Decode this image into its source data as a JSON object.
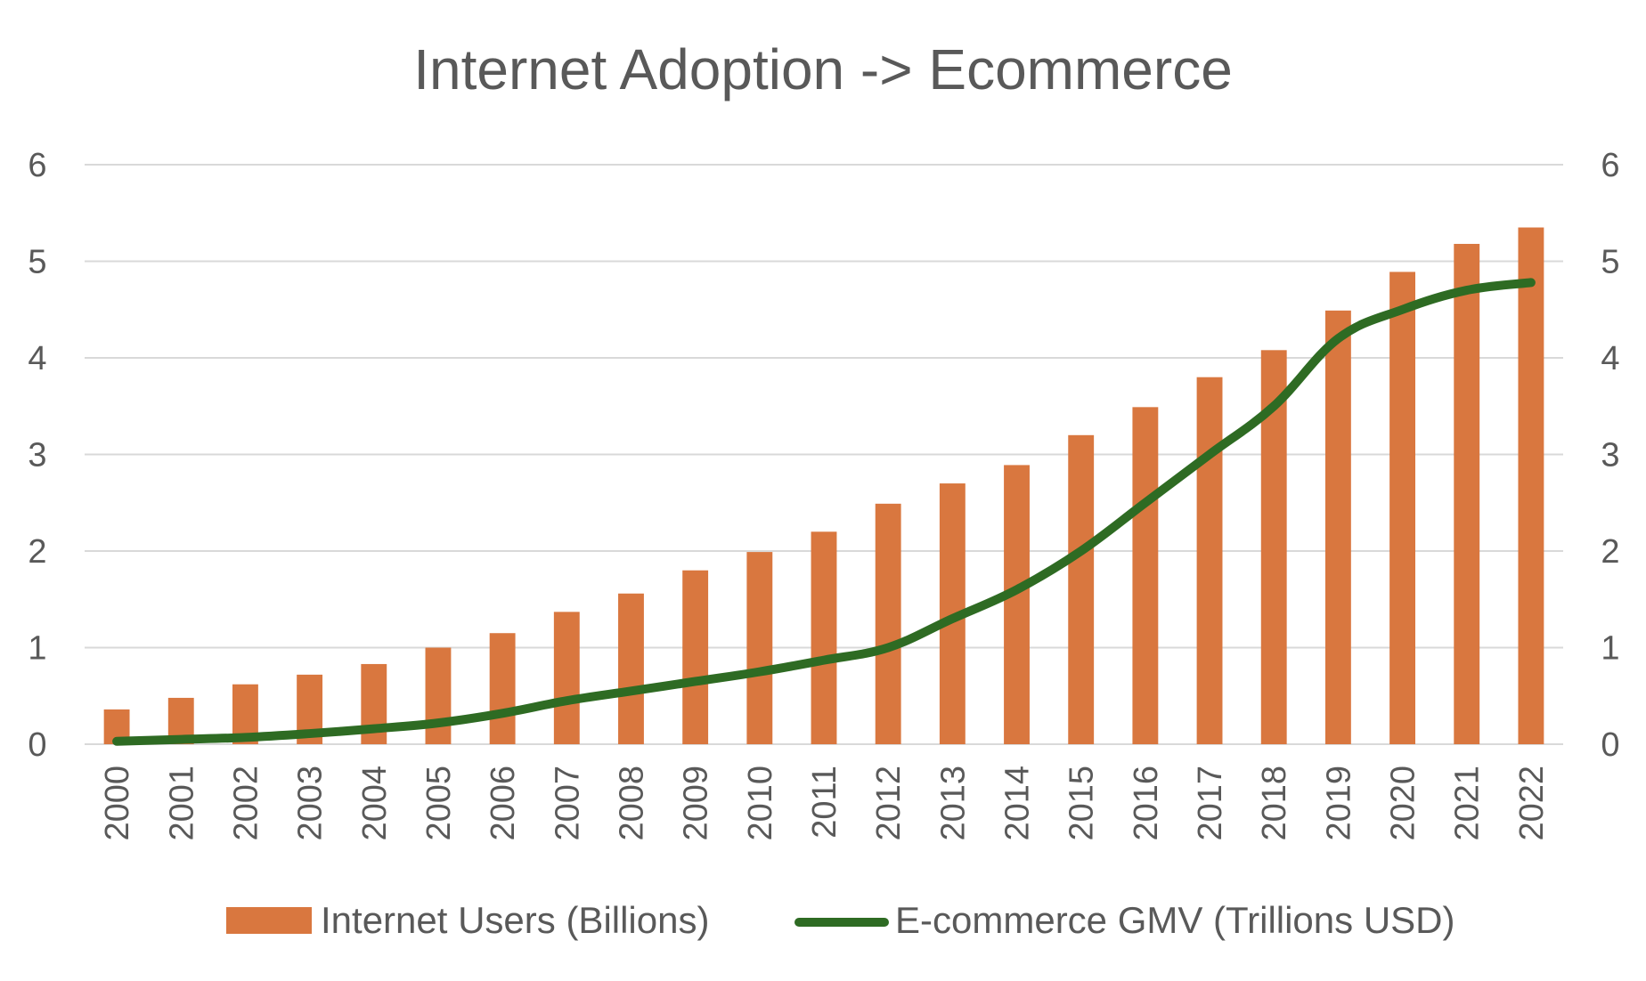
{
  "chart_data": {
    "type": "bar",
    "title": "Internet Adoption -> Ecommerce",
    "categories": [
      "2000",
      "2001",
      "2002",
      "2003",
      "2004",
      "2005",
      "2006",
      "2007",
      "2008",
      "2009",
      "2010",
      "2011",
      "2012",
      "2013",
      "2014",
      "2015",
      "2016",
      "2017",
      "2018",
      "2019",
      "2020",
      "2021",
      "2022"
    ],
    "series": [
      {
        "name": "Internet Users (Billions)",
        "type": "bar",
        "axis": "left",
        "color": "#D9773F",
        "values": [
          0.36,
          0.48,
          0.62,
          0.72,
          0.83,
          1.0,
          1.15,
          1.37,
          1.56,
          1.8,
          1.99,
          2.2,
          2.49,
          2.7,
          2.89,
          3.2,
          3.49,
          3.8,
          4.08,
          4.49,
          4.89,
          5.18,
          5.35
        ]
      },
      {
        "name": "E-commerce GMV (Trillions USD)",
        "type": "line",
        "axis": "right",
        "color": "#2E6B23",
        "values": [
          0.03,
          0.05,
          0.07,
          0.11,
          0.16,
          0.22,
          0.32,
          0.45,
          0.55,
          0.65,
          0.75,
          0.87,
          1.0,
          1.3,
          1.6,
          2.0,
          2.5,
          3.0,
          3.5,
          4.2,
          4.5,
          4.7,
          4.78
        ]
      }
    ],
    "ylim_left": [
      0,
      6
    ],
    "ylim_right": [
      0,
      6
    ],
    "yticks_left": [
      "0",
      "1",
      "2",
      "3",
      "4",
      "5",
      "6"
    ],
    "yticks_right": [
      "0",
      "1",
      "2",
      "3",
      "4",
      "5",
      "6"
    ],
    "grid": true,
    "legend_position": "bottom"
  }
}
